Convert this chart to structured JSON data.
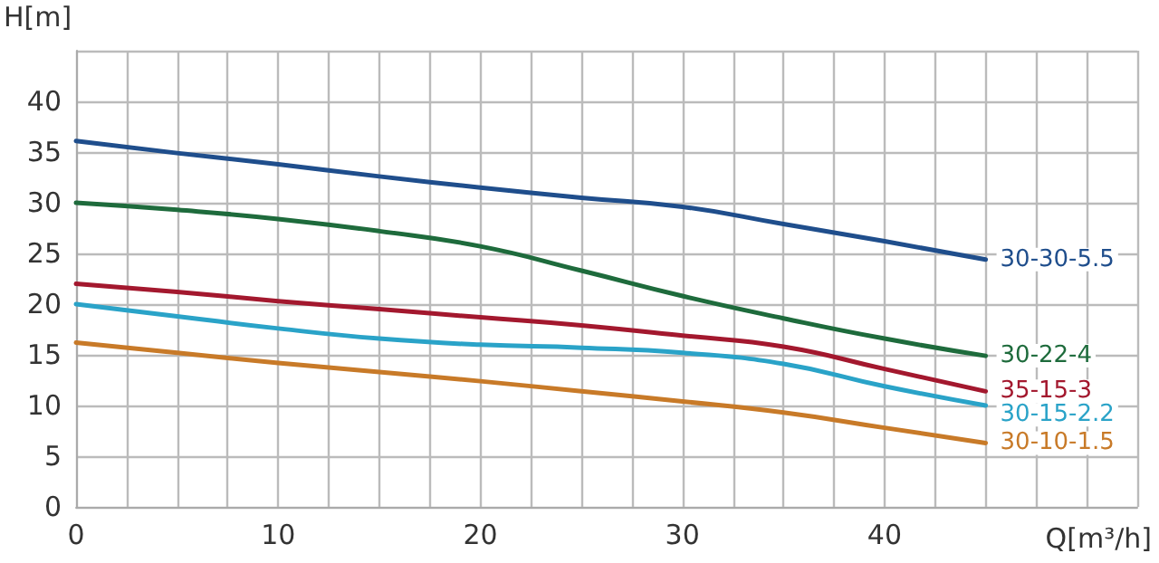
{
  "chart_data": {
    "type": "line",
    "xlabel": "Q[m³/h]",
    "ylabel": "H[m]",
    "x": [
      0,
      5,
      10,
      15,
      20,
      25,
      30,
      35,
      40,
      45
    ],
    "series": [
      {
        "name": "30-30-5.5",
        "color": "#1f4e8c",
        "values": [
          36.1,
          34.9,
          33.8,
          32.6,
          31.5,
          30.5,
          29.6,
          27.9,
          26.2,
          24.4
        ]
      },
      {
        "name": "30-22-4",
        "color": "#1e6b3c",
        "values": [
          30,
          29.3,
          28.4,
          27.2,
          25.7,
          23.3,
          20.8,
          18.6,
          16.6,
          14.9
        ]
      },
      {
        "name": "35-15-3",
        "color": "#a3182e",
        "values": [
          22,
          21.2,
          20.3,
          19.5,
          18.7,
          17.9,
          16.9,
          15.8,
          13.6,
          11.4
        ]
      },
      {
        "name": "30-15-2.2",
        "color": "#2aa3c8",
        "values": [
          20,
          18.8,
          17.6,
          16.6,
          16,
          15.7,
          15.2,
          14.1,
          11.9,
          10
        ]
      },
      {
        "name": "30-10-1.5",
        "color": "#c87a28",
        "values": [
          16.2,
          15.2,
          14.2,
          13.3,
          12.4,
          11.4,
          10.4,
          9.3,
          7.8,
          6.3
        ]
      }
    ],
    "xlim": [
      0,
      52.5
    ],
    "xticks": [
      0,
      {
        "value": 2.5,
        "label": null
      },
      {
        "value": 5,
        "label": null
      },
      {
        "value": 7.5,
        "label": null
      },
      10,
      {
        "value": 12.5,
        "label": null
      },
      {
        "value": 15,
        "label": null
      },
      {
        "value": 17.5,
        "label": null
      },
      20,
      {
        "value": 22.5,
        "label": null
      },
      {
        "value": 25,
        "label": null
      },
      {
        "value": 27.5,
        "label": null
      },
      30,
      {
        "value": 32.5,
        "label": null
      },
      {
        "value": 35,
        "label": null
      },
      {
        "value": 37.5,
        "label": null
      },
      40,
      {
        "value": 42.5,
        "label": null
      },
      {
        "value": 45,
        "label": null
      },
      {
        "value": 47.5,
        "label": null
      },
      {
        "value": 50,
        "label": null
      },
      {
        "value": 52.5,
        "label": null
      }
    ],
    "ylim": [
      0,
      45
    ],
    "yticks": [
      0,
      5,
      10,
      15,
      20,
      25,
      30,
      35,
      40,
      {
        "value": 45,
        "label": null
      }
    ],
    "grid": true,
    "legend": false,
    "marker": "none",
    "line_style": "solid"
  }
}
